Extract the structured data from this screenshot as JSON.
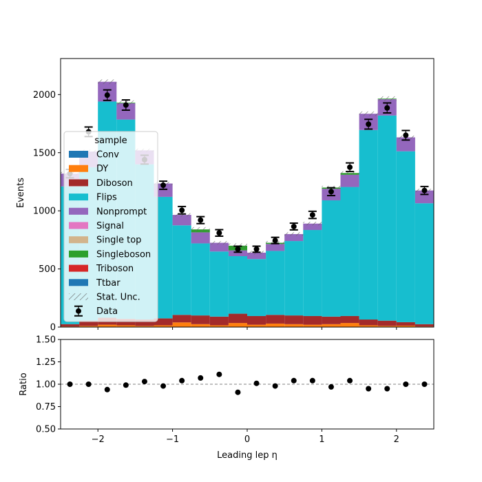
{
  "chart_data": [
    {
      "type": "bar",
      "stacked": true,
      "xlabel": "Leading lep η",
      "ylabel": "Events",
      "xlim": [
        -2.5,
        2.5
      ],
      "ylim": [
        0,
        2310
      ],
      "xticks": [
        -2,
        -1,
        0,
        1,
        2
      ],
      "yticks": [
        0,
        500,
        1000,
        1500,
        2000
      ],
      "bin_edges": [
        -2.5,
        -2.25,
        -2.0,
        -1.75,
        -1.5,
        -1.25,
        -1.0,
        -0.75,
        -0.5,
        -0.25,
        0.0,
        0.25,
        0.5,
        0.75,
        1.0,
        1.25,
        1.5,
        1.75,
        2.0,
        2.25,
        2.5
      ],
      "legend": {
        "title": "sample",
        "placement": "center-left",
        "entries": [
          "Conv",
          "DY",
          "Diboson",
          "Flips",
          "Nonprompt",
          "Signal",
          "Single top",
          "Singleboson",
          "Triboson",
          "Ttbar",
          "Stat. Unc.",
          "Data"
        ]
      },
      "series": [
        {
          "name": "Conv",
          "color": "#1f77b4",
          "values": [
            0,
            0,
            0,
            0,
            0,
            0,
            0,
            0,
            0,
            0,
            0,
            0,
            0,
            0,
            0,
            0,
            0,
            0,
            0,
            0
          ]
        },
        {
          "name": "DY",
          "color": "#ff7f0e",
          "values": [
            5,
            10,
            20,
            15,
            10,
            15,
            40,
            25,
            15,
            35,
            20,
            30,
            25,
            20,
            25,
            35,
            15,
            10,
            12,
            5
          ]
        },
        {
          "name": "Diboson",
          "color": "#a32a2a",
          "values": [
            20,
            45,
            60,
            55,
            55,
            60,
            65,
            75,
            75,
            80,
            75,
            75,
            75,
            75,
            65,
            60,
            50,
            45,
            30,
            20
          ]
        },
        {
          "name": "Flips",
          "color": "#17becf",
          "values": [
            1185,
            1320,
            1860,
            1715,
            1335,
            1045,
            770,
            620,
            560,
            495,
            490,
            550,
            640,
            740,
            1000,
            1110,
            1630,
            1765,
            1470,
            1040
          ]
        },
        {
          "name": "Nonprompt",
          "color": "#9467bd",
          "values": [
            110,
            135,
            170,
            140,
            120,
            115,
            90,
            95,
            75,
            50,
            55,
            60,
            60,
            55,
            100,
            105,
            140,
            140,
            120,
            110
          ]
        },
        {
          "name": "Signal",
          "color": "#e377c2",
          "values": [
            0,
            0,
            0,
            0,
            0,
            0,
            0,
            0,
            0,
            0,
            0,
            0,
            0,
            0,
            0,
            0,
            0,
            0,
            0,
            0
          ]
        },
        {
          "name": "Single top",
          "color": "#d2b48c",
          "values": [
            0,
            0,
            0,
            0,
            0,
            0,
            0,
            0,
            0,
            0,
            0,
            0,
            0,
            0,
            0,
            0,
            0,
            0,
            0,
            0
          ]
        },
        {
          "name": "Singleboson",
          "color": "#2ca02c",
          "values": [
            0,
            0,
            0,
            5,
            0,
            0,
            0,
            25,
            0,
            40,
            0,
            10,
            0,
            0,
            10,
            15,
            0,
            5,
            0,
            0
          ]
        },
        {
          "name": "Triboson",
          "color": "#d62728",
          "values": [
            0,
            0,
            0,
            0,
            0,
            0,
            0,
            0,
            0,
            0,
            0,
            0,
            0,
            0,
            0,
            0,
            0,
            0,
            0,
            0
          ]
        },
        {
          "name": "Ttbar",
          "color": "#1f77b4",
          "values": [
            0,
            0,
            0,
            0,
            0,
            0,
            0,
            0,
            0,
            0,
            0,
            0,
            0,
            0,
            0,
            0,
            0,
            0,
            0,
            0
          ]
        }
      ],
      "stat_unc": [
        15,
        15,
        20,
        20,
        15,
        15,
        15,
        20,
        15,
        20,
        15,
        15,
        15,
        15,
        15,
        15,
        20,
        20,
        15,
        15
      ],
      "data": {
        "name": "Data",
        "x": [
          -2.375,
          -2.125,
          -1.875,
          -1.625,
          -1.375,
          -1.125,
          -0.875,
          -0.625,
          -0.375,
          -0.125,
          0.125,
          0.375,
          0.625,
          0.875,
          1.125,
          1.375,
          1.625,
          1.875,
          2.125,
          2.375
        ],
        "y": [
          1320,
          1680,
          1995,
          1910,
          1440,
          1220,
          1005,
          920,
          810,
          670,
          670,
          745,
          865,
          965,
          1165,
          1375,
          1745,
          1885,
          1650,
          1175
        ],
        "yerr": [
          36,
          41,
          45,
          44,
          38,
          35,
          32,
          30,
          28,
          26,
          26,
          27,
          29,
          31,
          34,
          37,
          42,
          43,
          41,
          34
        ]
      }
    },
    {
      "type": "scatter",
      "xlabel": "Leading lep η",
      "ylabel": "Ratio",
      "xlim": [
        -2.5,
        2.5
      ],
      "ylim": [
        0.5,
        1.5
      ],
      "xticks": [
        -2,
        -1,
        0,
        1,
        2
      ],
      "yticks": [
        0.5,
        0.75,
        1.0,
        1.25,
        1.5
      ],
      "ytick_labels": [
        "0.50",
        "0.75",
        "1.00",
        "1.25",
        "1.50"
      ],
      "reference_line": 1.0,
      "x": [
        -2.375,
        -2.125,
        -1.875,
        -1.625,
        -1.375,
        -1.125,
        -0.875,
        -0.625,
        -0.375,
        -0.125,
        0.125,
        0.375,
        0.625,
        0.875,
        1.125,
        1.375,
        1.625,
        1.875,
        2.125,
        2.375
      ],
      "y": [
        1.0,
        1.0,
        0.94,
        0.99,
        1.03,
        0.98,
        1.04,
        1.07,
        1.11,
        0.91,
        1.01,
        0.98,
        1.04,
        1.04,
        0.97,
        1.04,
        0.95,
        0.95,
        1.0,
        1.0
      ],
      "yerr": [
        0,
        0,
        0,
        0,
        0,
        0,
        0,
        0,
        0.025,
        0,
        0,
        0,
        0,
        0,
        0,
        0,
        0,
        0,
        0,
        0
      ]
    }
  ]
}
